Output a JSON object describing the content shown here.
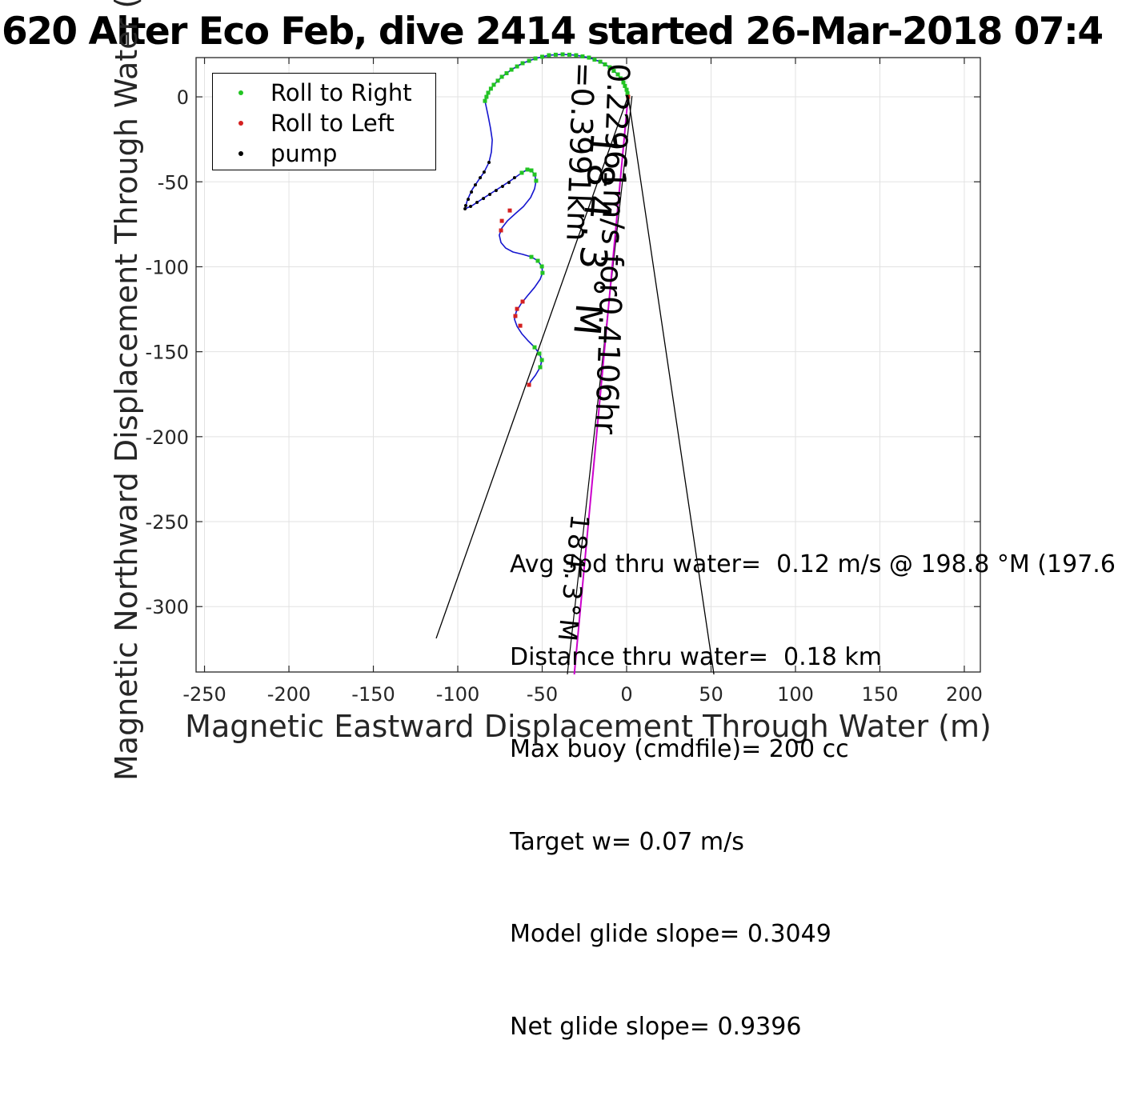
{
  "title": "620 Alter Eco Feb, dive 2414 started 26-Mar-2018 07:4",
  "legend": {
    "entries": [
      {
        "label": "Roll to Right",
        "color": "#22c422"
      },
      {
        "label": "Roll to Left",
        "color": "#d42020"
      },
      {
        "label": "pump",
        "color": "#000000"
      }
    ]
  },
  "stats": {
    "line1": "Avg Spd thru water=  0.12 m/s @ 198.8 °M (197.6",
    "line2": "Distance thru water=  0.18 km",
    "line3": "Max buoy (cmdfile)= 200 cc",
    "line4": "Target w= 0.07 m/s",
    "line5": "Model glide slope= 0.3049",
    "line6": "Net glide slope= 0.9396"
  },
  "annotations": {
    "speed_label": "0.22961m/s for0.4106hr =0.3991km",
    "bearing_label_large": "184.3°M",
    "bearing_label_small": "184.3°M"
  },
  "chart_data": {
    "type": "line",
    "title": "620 Alter Eco Feb, dive 2414 started 26-Mar-2018 07:4",
    "xlabel": "Magnetic Eastward Displacement Through Water (m)",
    "ylabel": "Magnetic Northward Displacement Through Water (m)",
    "xlim": [
      -255,
      209.5
    ],
    "ylim": [
      -338.5,
      23.1
    ],
    "xticks": [
      -250,
      -200,
      -150,
      -100,
      -50,
      0,
      50,
      100,
      150,
      200
    ],
    "yticks": [
      0,
      -50,
      -100,
      -150,
      -200,
      -250,
      -300
    ],
    "grid": true,
    "grid_color": "#e2e2e2",
    "colors": {
      "trajectory": "#1515cf",
      "roll_right": "#22c422",
      "roll_left": "#d42020",
      "pump": "#000000",
      "net_line": "#cc00cc",
      "fan_line": "#000000"
    },
    "series": [
      {
        "name": "trajectory",
        "draw": "line",
        "color": "#1515cf",
        "points": [
          [
            0.9,
            0.0
          ],
          [
            0.0,
            4.2
          ],
          [
            -1.9,
            8.5
          ],
          [
            -5.2,
            13.2
          ],
          [
            -10.0,
            17.4
          ],
          [
            -15.6,
            20.7
          ],
          [
            -22.3,
            23.1
          ],
          [
            -29.9,
            24.5
          ],
          [
            -37.9,
            25.0
          ],
          [
            -46.0,
            24.5
          ],
          [
            -54.0,
            22.6
          ],
          [
            -61.6,
            19.8
          ],
          [
            -68.2,
            16.0
          ],
          [
            -73.9,
            11.8
          ],
          [
            -78.7,
            7.1
          ],
          [
            -82.0,
            2.4
          ],
          [
            -83.9,
            -2.4
          ],
          [
            -82.0,
            -11.3
          ],
          [
            -80.6,
            -18.4
          ],
          [
            -79.6,
            -25.4
          ],
          [
            -80.1,
            -32.5
          ],
          [
            -81.5,
            -38.6
          ],
          [
            -84.4,
            -44.3
          ],
          [
            -87.7,
            -49.0
          ],
          [
            -91.5,
            -54.6
          ],
          [
            -94.3,
            -60.7
          ],
          [
            -95.7,
            -65.9
          ],
          [
            -91.5,
            -64.0
          ],
          [
            -85.8,
            -60.3
          ],
          [
            -79.1,
            -56.0
          ],
          [
            -72.5,
            -51.8
          ],
          [
            -66.8,
            -48.0
          ],
          [
            -62.1,
            -44.7
          ],
          [
            -58.8,
            -42.8
          ],
          [
            -56.4,
            -43.3
          ],
          [
            -54.5,
            -45.7
          ],
          [
            -53.6,
            -49.4
          ],
          [
            -54.5,
            -54.1
          ],
          [
            -56.9,
            -59.3
          ],
          [
            -61.1,
            -64.5
          ],
          [
            -65.9,
            -68.7
          ],
          [
            -70.6,
            -73.0
          ],
          [
            -73.9,
            -77.2
          ],
          [
            -75.4,
            -81.4
          ],
          [
            -74.4,
            -85.7
          ],
          [
            -71.6,
            -89.0
          ],
          [
            -67.3,
            -91.3
          ],
          [
            -61.6,
            -92.7
          ],
          [
            -56.4,
            -94.2
          ],
          [
            -52.6,
            -96.5
          ],
          [
            -50.2,
            -99.8
          ],
          [
            -49.8,
            -103.6
          ],
          [
            -51.2,
            -107.3
          ],
          [
            -54.5,
            -112.1
          ],
          [
            -58.8,
            -117.2
          ],
          [
            -62.6,
            -121.9
          ],
          [
            -65.4,
            -126.6
          ],
          [
            -66.4,
            -130.9
          ],
          [
            -64.9,
            -135.1
          ],
          [
            -62.1,
            -139.4
          ],
          [
            -58.3,
            -143.6
          ],
          [
            -54.5,
            -147.4
          ],
          [
            -51.7,
            -151.1
          ],
          [
            -50.2,
            -154.9
          ],
          [
            -51.2,
            -159.1
          ],
          [
            -54.0,
            -163.8
          ],
          [
            -56.9,
            -167.6
          ],
          [
            -57.8,
            -169.5
          ]
        ]
      },
      {
        "name": "Roll to Right",
        "draw": "markers",
        "marker": "square",
        "size": 5,
        "color": "#22c422",
        "points": [
          [
            0.9,
            0.0
          ],
          [
            0.5,
            2.1
          ],
          [
            0.0,
            4.2
          ],
          [
            -1.0,
            6.4
          ],
          [
            -1.9,
            8.5
          ],
          [
            -3.6,
            10.9
          ],
          [
            -5.2,
            13.2
          ],
          [
            -7.6,
            15.3
          ],
          [
            -10.0,
            17.4
          ],
          [
            -12.8,
            19.1
          ],
          [
            -15.6,
            20.7
          ],
          [
            -19.0,
            21.9
          ],
          [
            -22.3,
            23.1
          ],
          [
            -26.1,
            23.8
          ],
          [
            -29.9,
            24.5
          ],
          [
            -33.9,
            24.8
          ],
          [
            -37.9,
            25.0
          ],
          [
            -42.0,
            24.8
          ],
          [
            -46.0,
            24.5
          ],
          [
            -50.0,
            23.6
          ],
          [
            -54.0,
            22.6
          ],
          [
            -57.8,
            21.2
          ],
          [
            -61.6,
            19.8
          ],
          [
            -64.9,
            17.9
          ],
          [
            -68.2,
            16.0
          ],
          [
            -71.1,
            13.9
          ],
          [
            -73.9,
            11.8
          ],
          [
            -76.3,
            9.5
          ],
          [
            -78.7,
            7.1
          ],
          [
            -80.4,
            4.8
          ],
          [
            -82.0,
            2.4
          ],
          [
            -83.0,
            0.0
          ],
          [
            -83.9,
            -2.4
          ],
          [
            -62.1,
            -44.7
          ],
          [
            -58.8,
            -42.8
          ],
          [
            -56.4,
            -43.3
          ],
          [
            -54.5,
            -45.7
          ],
          [
            -53.6,
            -49.4
          ],
          [
            -56.4,
            -94.2
          ],
          [
            -52.6,
            -96.5
          ],
          [
            -50.2,
            -99.8
          ],
          [
            -49.8,
            -103.6
          ],
          [
            -54.5,
            -147.4
          ],
          [
            -51.7,
            -151.1
          ],
          [
            -50.2,
            -154.9
          ],
          [
            -51.2,
            -159.1
          ]
        ]
      },
      {
        "name": "Roll to Left",
        "draw": "markers",
        "marker": "square",
        "size": 5,
        "color": "#d42020",
        "points": [
          [
            0.9,
            0.0
          ],
          [
            -69.2,
            -66.9
          ],
          [
            -73.9,
            -73.0
          ],
          [
            -74.4,
            -78.6
          ],
          [
            -61.6,
            -120.5
          ],
          [
            -64.9,
            -124.8
          ],
          [
            -65.9,
            -129.0
          ],
          [
            -63.0,
            -134.7
          ],
          [
            -57.8,
            -169.5
          ]
        ]
      },
      {
        "name": "pump",
        "draw": "markers",
        "marker": "circle",
        "size": 4,
        "color": "#000000",
        "points": [
          [
            -81.5,
            -38.6
          ],
          [
            -84.4,
            -44.3
          ],
          [
            -86.7,
            -47.6
          ],
          [
            -89.6,
            -51.8
          ],
          [
            -91.9,
            -56.0
          ],
          [
            -93.8,
            -60.3
          ],
          [
            -95.3,
            -64.0
          ],
          [
            -95.7,
            -65.9
          ],
          [
            -92.4,
            -64.5
          ],
          [
            -88.6,
            -62.1
          ],
          [
            -84.8,
            -59.8
          ],
          [
            -81.0,
            -57.4
          ],
          [
            -77.3,
            -55.1
          ],
          [
            -73.5,
            -52.7
          ],
          [
            -69.7,
            -50.4
          ],
          [
            -66.4,
            -47.6
          ]
        ]
      }
    ],
    "lines": [
      {
        "name": "bearing-fan-left",
        "color": "#000000",
        "width": 1.3,
        "from": [
          0.9,
          0.5
        ],
        "to": [
          -112.8,
          -318.7
        ]
      },
      {
        "name": "bearing-fan-right",
        "color": "#000000",
        "width": 1.3,
        "from": [
          0.9,
          0.5
        ],
        "to": [
          51.7,
          -339.9
        ]
      },
      {
        "name": "net-displacement-black",
        "color": "#000000",
        "width": 1.2,
        "from": [
          3.2,
          0.5
        ],
        "to": [
          -35.1,
          -339.9
        ]
      },
      {
        "name": "net-displacement-magenta",
        "color": "#cc00cc",
        "width": 2.0,
        "from": [
          0.9,
          0.5
        ],
        "to": [
          -31.0,
          -339.9
        ]
      }
    ]
  }
}
